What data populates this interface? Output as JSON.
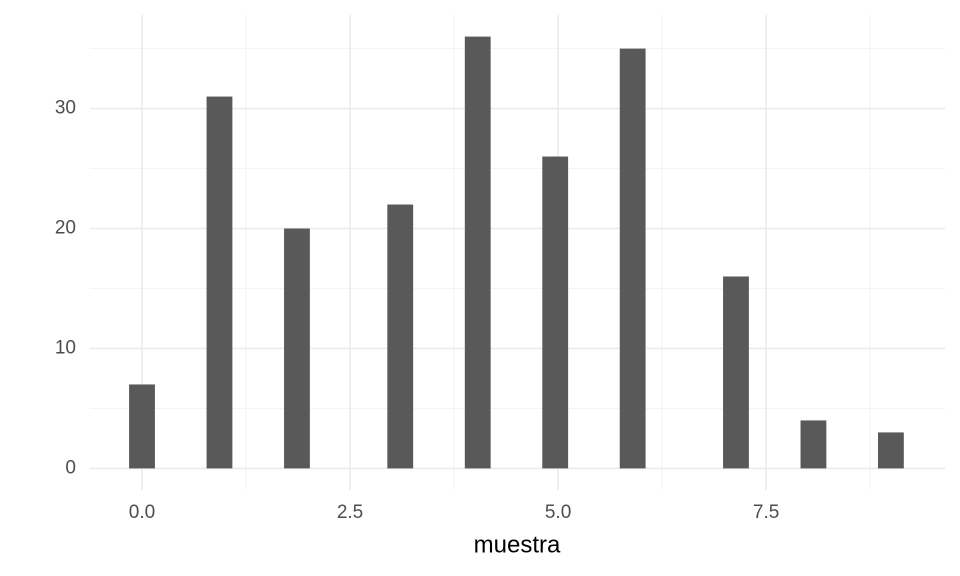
{
  "chart_data": {
    "type": "histogram",
    "x_label": "muestra",
    "bins": [
      -0.1552,
      0.1552,
      0.4655,
      0.7759,
      1.0862,
      1.3966,
      1.7069,
      2.0172,
      2.3276,
      2.6379,
      2.9483,
      3.2586,
      3.569,
      3.8793,
      4.1897,
      4.5,
      4.8103,
      5.1207,
      5.431,
      5.7414,
      6.0517,
      6.3621,
      6.6724,
      6.9828,
      7.2931,
      7.6034,
      7.9138,
      8.2241,
      8.5345,
      8.8448,
      9.1552
    ],
    "values": [
      7,
      0,
      0,
      31,
      0,
      0,
      20,
      0,
      0,
      0,
      22,
      0,
      0,
      36,
      0,
      0,
      26,
      0,
      0,
      35,
      0,
      0,
      0,
      16,
      0,
      0,
      4,
      0,
      0,
      3
    ],
    "color": "#595959",
    "xlim": [
      -0.625,
      9.65
    ],
    "ylim": [
      -1.8,
      37.8
    ],
    "xticks": [
      {
        "value": 0,
        "label": "0.0"
      },
      {
        "value": 2.5,
        "label": "2.5"
      },
      {
        "value": 5,
        "label": "5.0"
      },
      {
        "value": 7.5,
        "label": "7.5"
      }
    ],
    "yticks": [
      0,
      10,
      20,
      30
    ],
    "x_minor_grid": [
      1.25,
      3.75,
      6.25,
      8.75
    ],
    "y_minor_grid": [
      5,
      15,
      25,
      35
    ],
    "grid": true
  }
}
